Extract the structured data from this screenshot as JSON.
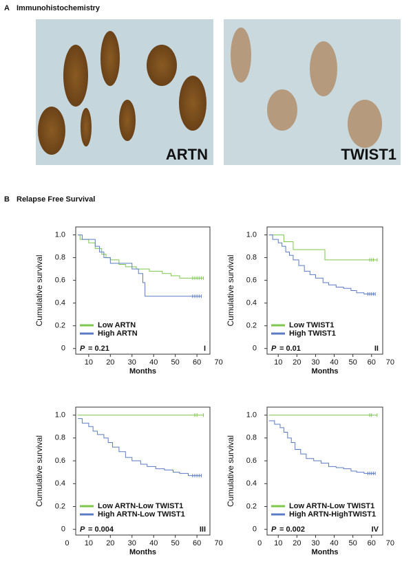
{
  "panel_a": {
    "label": "A",
    "title": "Immunohistochemistry",
    "images": [
      {
        "label": "ARTN"
      },
      {
        "label": "TWIST1"
      }
    ]
  },
  "panel_b": {
    "label": "B",
    "title": "Relapse Free Survival"
  },
  "chart_data": [
    {
      "type": "line",
      "step": true,
      "x_label": "Months",
      "y_label": "Cumulative survival",
      "p_symbol": "P",
      "p_text": "= 0.21",
      "panel": "I",
      "xlim": [
        4,
        66
      ],
      "ylim": [
        -0.05,
        1.07
      ],
      "xticks": [
        10,
        20,
        30,
        40,
        50,
        60,
        70
      ],
      "yticks": [
        0,
        0.2,
        0.4,
        0.6,
        0.8,
        {
          "value": 1,
          "label": "1.0"
        }
      ],
      "legend": "lower left",
      "series": [
        {
          "name": "Low ARTN",
          "color": "#7dc84a",
          "x": [
            5,
            6,
            10,
            13,
            16,
            18,
            20,
            24,
            27,
            32,
            38,
            44,
            48,
            52,
            63
          ],
          "values": [
            1,
            0.96,
            0.93,
            0.88,
            0.83,
            0.8,
            0.78,
            0.74,
            0.72,
            0.7,
            0.68,
            0.66,
            0.64,
            0.62,
            0.62
          ],
          "censored": [
            58,
            59,
            60,
            61,
            62,
            63
          ]
        },
        {
          "name": "High ARTN",
          "color": "#5a7bc4",
          "x": [
            5,
            7,
            13,
            15,
            17,
            20,
            30,
            33,
            35,
            36,
            62
          ],
          "values": [
            1,
            0.96,
            0.9,
            0.85,
            0.8,
            0.75,
            0.7,
            0.66,
            0.58,
            0.46,
            0.46
          ],
          "censored": [
            58,
            59,
            60,
            61,
            62
          ]
        }
      ]
    },
    {
      "type": "line",
      "step": true,
      "x_label": "Months",
      "y_label": "Cumulative survival",
      "p_symbol": "P",
      "p_text": "= 0.01",
      "panel": "II",
      "xlim": [
        4,
        66
      ],
      "ylim": [
        -0.05,
        1.07
      ],
      "xticks": [
        10,
        20,
        30,
        40,
        50,
        60,
        70
      ],
      "yticks": [
        0,
        0.2,
        0.4,
        0.6,
        0.8,
        {
          "value": 1,
          "label": "1.0"
        }
      ],
      "legend": "lower left",
      "series": [
        {
          "name": "Low TWIST1",
          "color": "#7dc84a",
          "x": [
            5,
            13,
            18,
            35,
            63
          ],
          "values": [
            1,
            0.94,
            0.87,
            0.78,
            0.78
          ],
          "censored": [
            59,
            60,
            61,
            63
          ]
        },
        {
          "name": "High TWIST1",
          "color": "#5a7bc4",
          "x": [
            5,
            7,
            10,
            12,
            14,
            16,
            18,
            21,
            24,
            27,
            30,
            34,
            37,
            41,
            45,
            49,
            52,
            56,
            62
          ],
          "values": [
            1,
            0.96,
            0.93,
            0.9,
            0.85,
            0.82,
            0.78,
            0.73,
            0.68,
            0.65,
            0.62,
            0.58,
            0.56,
            0.54,
            0.53,
            0.51,
            0.49,
            0.48,
            0.48
          ],
          "censored": [
            58,
            59,
            60,
            61,
            62
          ]
        }
      ]
    },
    {
      "type": "line",
      "step": true,
      "x_label": "Months",
      "y_label": "Cumulative survival",
      "p_symbol": "P",
      "p_text": "= 0.004",
      "panel": "III",
      "xlim": [
        4,
        66
      ],
      "ylim": [
        -0.05,
        1.07
      ],
      "xticks": [
        0,
        10,
        20,
        30,
        40,
        50,
        60,
        70
      ],
      "yticks": [
        0,
        0.2,
        0.4,
        0.6,
        0.8,
        {
          "value": 1,
          "label": "1.0"
        }
      ],
      "legend": "lower left",
      "series": [
        {
          "name": "Low ARTN-Low TWIST1",
          "color": "#7dc84a",
          "x": [
            5,
            63
          ],
          "values": [
            1,
            1
          ],
          "censored": [
            59,
            60,
            63
          ]
        },
        {
          "name": "High ARTN-Low TWIST1",
          "color": "#5a7bc4",
          "x": [
            5,
            7,
            10,
            12,
            14,
            17,
            19,
            21,
            24,
            27,
            30,
            34,
            37,
            41,
            45,
            49,
            52,
            56,
            62
          ],
          "values": [
            0.97,
            0.93,
            0.9,
            0.86,
            0.83,
            0.8,
            0.76,
            0.72,
            0.68,
            0.63,
            0.6,
            0.57,
            0.55,
            0.53,
            0.52,
            0.5,
            0.49,
            0.47,
            0.47
          ],
          "censored": [
            58,
            59,
            60,
            61,
            62
          ]
        }
      ]
    },
    {
      "type": "line",
      "step": true,
      "x_label": "Months",
      "y_label": "Cumulative survival",
      "p_symbol": "P",
      "p_text": "= 0.002",
      "panel": "IV",
      "xlim": [
        4,
        66
      ],
      "ylim": [
        -0.05,
        1.07
      ],
      "xticks": [
        0,
        10,
        20,
        30,
        40,
        50,
        60,
        70
      ],
      "yticks": [
        0,
        0.2,
        0.4,
        0.6,
        0.8,
        {
          "value": 1,
          "label": "1.0"
        }
      ],
      "legend": "lower left",
      "series": [
        {
          "name": "Low ARTN-Low TWIST1",
          "color": "#7dc84a",
          "x": [
            5,
            63
          ],
          "values": [
            1,
            1
          ],
          "censored": [
            59,
            60,
            63
          ]
        },
        {
          "name": "High ARTN-HighTWIST1",
          "color": "#5a7bc4",
          "x": [
            5,
            8,
            11,
            13,
            15,
            17,
            19,
            22,
            25,
            29,
            33,
            37,
            41,
            45,
            49,
            52,
            56,
            62
          ],
          "values": [
            0.95,
            0.92,
            0.89,
            0.85,
            0.8,
            0.76,
            0.7,
            0.66,
            0.62,
            0.6,
            0.58,
            0.55,
            0.54,
            0.53,
            0.51,
            0.5,
            0.49,
            0.49
          ],
          "censored": [
            58,
            59,
            60,
            61,
            62
          ]
        }
      ]
    }
  ]
}
